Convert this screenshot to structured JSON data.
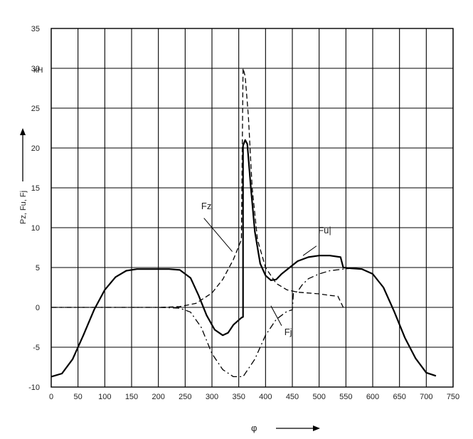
{
  "chart_data": {
    "type": "line",
    "title": "",
    "xlabel": "φ",
    "ylabel": "Pz, Fu, Fj",
    "unit_label": "κH",
    "xlim": [
      0,
      750
    ],
    "ylim": [
      -10,
      35
    ],
    "x_ticks": [
      0,
      50,
      100,
      150,
      200,
      250,
      300,
      350,
      400,
      450,
      500,
      550,
      600,
      650,
      700,
      750
    ],
    "x_tick_labels": [
      "0",
      "50",
      "100",
      "150",
      "200",
      "250",
      "300",
      "350",
      "400",
      "450",
      "500",
      "550",
      "600",
      "650",
      "700",
      "750"
    ],
    "y_ticks": [
      -10,
      -5,
      0,
      5,
      10,
      15,
      20,
      25,
      30,
      35
    ],
    "y_tick_labels": [
      "-10",
      "-5",
      "0",
      "5",
      "10",
      "15",
      "20",
      "25",
      "30",
      "35"
    ],
    "grid": true,
    "series": [
      {
        "name": "Fu",
        "style": "solid",
        "color": "#000000",
        "points": [
          [
            0,
            -8.7
          ],
          [
            20,
            -8.3
          ],
          [
            40,
            -6.5
          ],
          [
            60,
            -3.5
          ],
          [
            80,
            -0.3
          ],
          [
            100,
            2.2
          ],
          [
            120,
            3.8
          ],
          [
            140,
            4.6
          ],
          [
            160,
            4.8
          ],
          [
            180,
            4.8
          ],
          [
            200,
            4.8
          ],
          [
            220,
            4.8
          ],
          [
            240,
            4.7
          ],
          [
            260,
            3.7
          ],
          [
            275,
            1.5
          ],
          [
            290,
            -1.0
          ],
          [
            305,
            -2.8
          ],
          [
            320,
            -3.5
          ],
          [
            330,
            -3.2
          ],
          [
            340,
            -2.2
          ],
          [
            355,
            -1.3
          ],
          [
            358,
            -1.2
          ],
          [
            358,
            20.3
          ],
          [
            362,
            21.0
          ],
          [
            366,
            20.5
          ],
          [
            372,
            15.5
          ],
          [
            380,
            9.5
          ],
          [
            390,
            5.5
          ],
          [
            400,
            4.0
          ],
          [
            410,
            3.4
          ],
          [
            420,
            3.5
          ],
          [
            430,
            4.2
          ],
          [
            445,
            5.0
          ],
          [
            460,
            5.8
          ],
          [
            480,
            6.3
          ],
          [
            500,
            6.5
          ],
          [
            520,
            6.5
          ],
          [
            540,
            6.3
          ],
          [
            545,
            5.0
          ],
          [
            560,
            4.9
          ],
          [
            580,
            4.8
          ],
          [
            600,
            4.2
          ],
          [
            620,
            2.5
          ],
          [
            640,
            -0.5
          ],
          [
            660,
            -3.8
          ],
          [
            680,
            -6.4
          ],
          [
            700,
            -8.2
          ],
          [
            718,
            -8.6
          ]
        ]
      },
      {
        "name": "Fz",
        "style": "dashed",
        "color": "#000000",
        "points": [
          [
            0,
            0
          ],
          [
            100,
            0
          ],
          [
            200,
            0
          ],
          [
            240,
            0.1
          ],
          [
            270,
            0.5
          ],
          [
            300,
            1.8
          ],
          [
            320,
            3.5
          ],
          [
            340,
            6.0
          ],
          [
            355,
            8.5
          ],
          [
            358,
            30.0
          ],
          [
            362,
            29.0
          ],
          [
            368,
            24.0
          ],
          [
            375,
            15.0
          ],
          [
            385,
            8.5
          ],
          [
            400,
            5.0
          ],
          [
            420,
            3.0
          ],
          [
            440,
            2.2
          ],
          [
            460,
            1.9
          ],
          [
            480,
            1.8
          ],
          [
            500,
            1.7
          ],
          [
            520,
            1.5
          ],
          [
            535,
            1.4
          ],
          [
            545,
            0.0
          ]
        ]
      },
      {
        "name": "Fj",
        "style": "dashdot",
        "color": "#000000",
        "points": [
          [
            0,
            0
          ],
          [
            200,
            0
          ],
          [
            240,
            -0.1
          ],
          [
            260,
            -0.6
          ],
          [
            280,
            -2.5
          ],
          [
            300,
            -5.8
          ],
          [
            320,
            -7.8
          ],
          [
            340,
            -8.7
          ],
          [
            358,
            -8.7
          ],
          [
            380,
            -6.5
          ],
          [
            400,
            -3.5
          ],
          [
            420,
            -1.5
          ],
          [
            440,
            -0.5
          ],
          [
            450,
            -0.3
          ],
          [
            452,
            1.8
          ],
          [
            460,
            2.0
          ],
          [
            468,
            2.8
          ],
          [
            480,
            3.6
          ],
          [
            500,
            4.2
          ],
          [
            520,
            4.6
          ],
          [
            545,
            4.8
          ],
          [
            560,
            4.9
          ],
          [
            580,
            4.8
          ]
        ]
      }
    ],
    "annotations": [
      {
        "text": "Fz",
        "x": 280,
        "y": 12.3
      },
      {
        "text": "Fu|",
        "x": 498,
        "y": 9.3
      },
      {
        "text": "Fj",
        "x": 435,
        "y": -3.5
      }
    ]
  }
}
